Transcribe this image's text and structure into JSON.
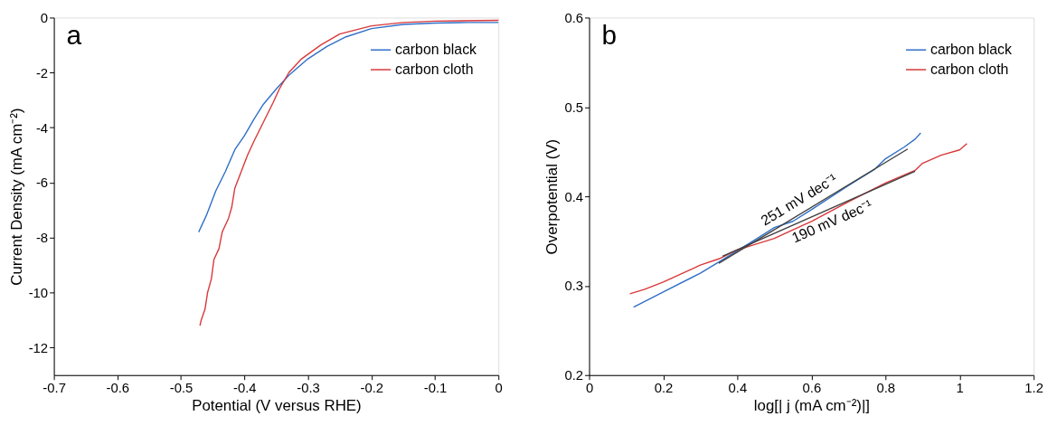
{
  "chart_data": [
    {
      "type": "line",
      "title": "a",
      "xlabel": "Potential (V versus RHE)",
      "ylabel": "Current Density  (mA cm⁻²)",
      "xlim": [
        -0.7,
        0
      ],
      "xticks": [
        -0.7,
        -0.6,
        -0.5,
        -0.4,
        -0.3,
        -0.2,
        -0.1,
        0
      ],
      "ylim": [
        -13,
        0
      ],
      "yticks": [
        -12,
        -10,
        -8,
        -6,
        -4,
        -2,
        0
      ],
      "grid": false,
      "legend": "top right",
      "series": [
        {
          "name": "carbon black",
          "color": "#2f6fc8",
          "x": [
            -0.472,
            -0.46,
            -0.445,
            -0.43,
            -0.415,
            -0.4,
            -0.385,
            -0.37,
            -0.35,
            -0.33,
            -0.3,
            -0.27,
            -0.24,
            -0.2,
            -0.15,
            -0.1,
            -0.05,
            0
          ],
          "values": [
            -7.8,
            -7.2,
            -6.3,
            -5.6,
            -4.8,
            -4.3,
            -3.7,
            -3.15,
            -2.6,
            -2.1,
            -1.5,
            -1.05,
            -0.7,
            -0.4,
            -0.25,
            -0.2,
            -0.18,
            -0.18
          ]
        },
        {
          "name": "carbon cloth",
          "color": "#d9383a",
          "x": [
            -0.47,
            -0.468,
            -0.462,
            -0.458,
            -0.452,
            -0.448,
            -0.44,
            -0.435,
            -0.425,
            -0.42,
            -0.415,
            -0.405,
            -0.395,
            -0.385,
            -0.37,
            -0.355,
            -0.345,
            -0.33,
            -0.31,
            -0.28,
            -0.25,
            -0.2,
            -0.15,
            -0.1,
            0
          ],
          "values": [
            -11.2,
            -11.0,
            -10.6,
            -10.0,
            -9.5,
            -8.8,
            -8.4,
            -7.8,
            -7.3,
            -6.9,
            -6.2,
            -5.6,
            -5.0,
            -4.5,
            -3.8,
            -3.1,
            -2.6,
            -2.0,
            -1.5,
            -1.0,
            -0.6,
            -0.3,
            -0.18,
            -0.13,
            -0.1
          ]
        }
      ]
    },
    {
      "type": "line",
      "title": "b",
      "xlabel": "log[| j (mA cm⁻²)|]",
      "ylabel": "Overpotential (V)",
      "xlim": [
        0,
        1.2
      ],
      "xticks": [
        0,
        0.2,
        0.4,
        0.6,
        0.8,
        1,
        1.2
      ],
      "ylim": [
        0.2,
        0.6
      ],
      "yticks": [
        0.2,
        0.3,
        0.4,
        0.5,
        0.6
      ],
      "grid": false,
      "legend": "top right",
      "annotations": [
        "251 mV dec⁻¹",
        "190 mV dec⁻¹"
      ],
      "series": [
        {
          "name": "carbon black",
          "color": "#2f6fc8",
          "x": [
            0.12,
            0.2,
            0.3,
            0.4,
            0.5,
            0.55,
            0.6,
            0.7,
            0.77,
            0.8,
            0.85,
            0.88,
            0.895
          ],
          "values": [
            0.276,
            0.293,
            0.314,
            0.339,
            0.365,
            0.372,
            0.385,
            0.412,
            0.43,
            0.442,
            0.455,
            0.464,
            0.471
          ]
        },
        {
          "name": "carbon cloth",
          "color": "#d9383a",
          "x": [
            0.11,
            0.15,
            0.2,
            0.3,
            0.35,
            0.4,
            0.5,
            0.6,
            0.7,
            0.8,
            0.88,
            0.9,
            0.95,
            1.0,
            1.02
          ],
          "values": [
            0.291,
            0.296,
            0.304,
            0.323,
            0.33,
            0.34,
            0.353,
            0.372,
            0.394,
            0.415,
            0.429,
            0.437,
            0.446,
            0.452,
            0.459
          ]
        },
        {
          "color": "#404040",
          "x": [
            0.35,
            0.86
          ],
          "values": [
            0.325,
            0.453
          ]
        },
        {
          "color": "#404040",
          "x": [
            0.36,
            0.88
          ],
          "values": [
            0.333,
            0.428
          ]
        }
      ]
    }
  ]
}
